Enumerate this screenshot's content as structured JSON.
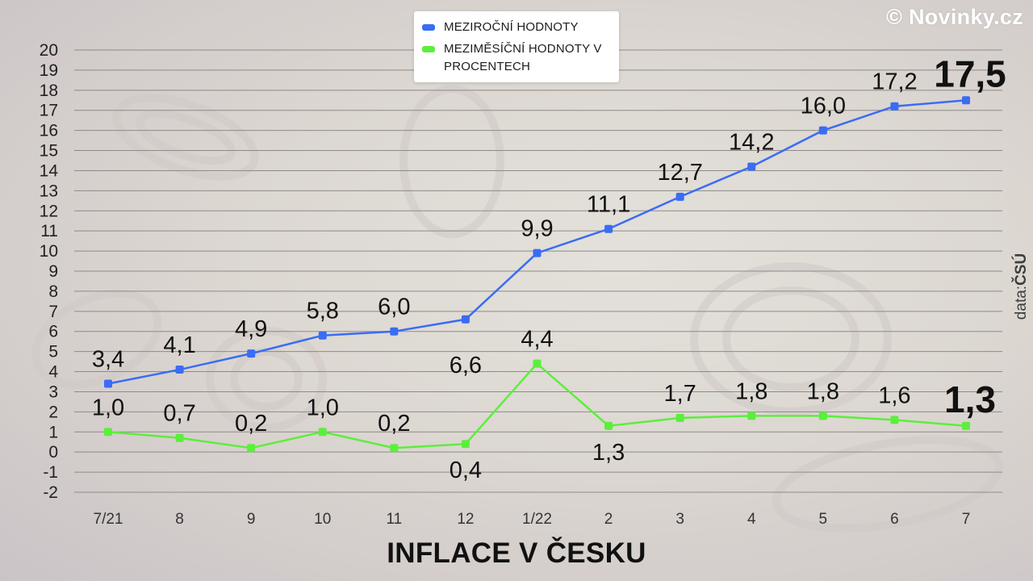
{
  "brand": "© Novinky.cz",
  "source_prefix": "data:",
  "source_name": "ČSÚ",
  "legend": [
    {
      "label": "MEZIROČNÍ HODNOTY",
      "color": "#3a6cf4"
    },
    {
      "label": "MEZIMĚSÍČNÍ HODNOTY V PROCENTECH",
      "color": "#5cee3c"
    }
  ],
  "chart_data": {
    "type": "line",
    "title": "INFLACE V ČESKU",
    "xlabel": "",
    "ylabel": "",
    "categories": [
      "7/21",
      "8",
      "9",
      "10",
      "11",
      "12",
      "1/22",
      "2",
      "3",
      "4",
      "5",
      "6",
      "7"
    ],
    "ylim": [
      -2,
      20
    ],
    "yticks": [
      "20",
      "19",
      "18",
      "17",
      "16",
      "15",
      "14",
      "13",
      "12",
      "11",
      "10",
      "9",
      "8",
      "7",
      "6",
      "5",
      "4",
      "3",
      "2",
      "1",
      "0",
      "-1",
      "-2"
    ],
    "grid": true,
    "legend_position": "top-center",
    "series": [
      {
        "name": "MEZIROČNÍ HODNOTY",
        "color": "#3a6cf4",
        "values": [
          3.4,
          4.1,
          4.9,
          5.8,
          6.0,
          6.6,
          9.9,
          11.1,
          12.7,
          14.2,
          16.0,
          17.2,
          17.5
        ],
        "labels": [
          "3,4",
          "4,1",
          "4,9",
          "5,8",
          "6,0",
          "6,6",
          "9,9",
          "11,1",
          "12,7",
          "14,2",
          "16,0",
          "17,2",
          "17,5"
        ]
      },
      {
        "name": "MEZIMĚSÍČNÍ HODNOTY V PROCENTECH",
        "color": "#5cee3c",
        "values": [
          1.0,
          0.7,
          0.2,
          1.0,
          0.2,
          0.4,
          4.4,
          1.3,
          1.7,
          1.8,
          1.8,
          1.6,
          1.3
        ],
        "labels": [
          "1,0",
          "0,7",
          "0,2",
          "1,0",
          "0,2",
          "0,4",
          "4,4",
          "1,3",
          "1,7",
          "1,8",
          "1,8",
          "1,6",
          "1,3"
        ]
      }
    ]
  }
}
